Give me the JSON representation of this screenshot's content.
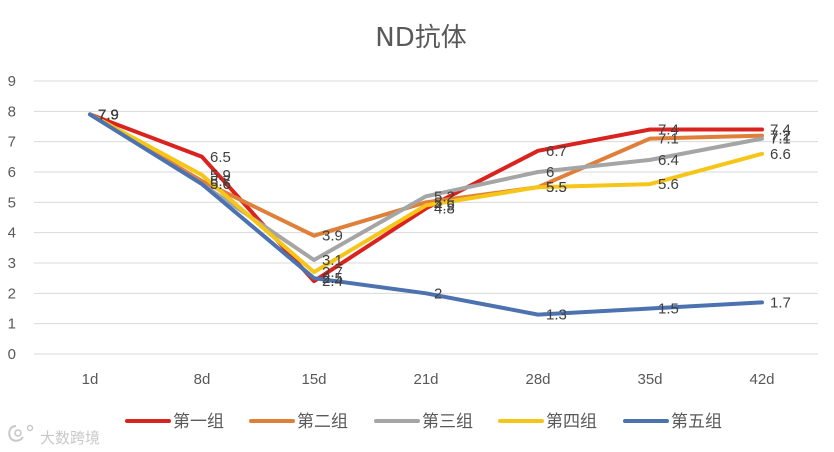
{
  "chart_data": {
    "type": "line",
    "title": "ND抗体",
    "categories": [
      "1d",
      "8d",
      "15d",
      "21d",
      "28d",
      "35d",
      "42d"
    ],
    "ylim": [
      0,
      9
    ],
    "yticks": [
      "0",
      "1",
      "2",
      "3",
      "4",
      "5",
      "6",
      "7",
      "8",
      "9"
    ],
    "grid": true,
    "legend": "bottom",
    "series": [
      {
        "name": "第一组",
        "color": "#d9231f",
        "values": [
          7.9,
          6.5,
          2.4,
          4.8,
          6.7,
          7.4,
          7.4
        ]
      },
      {
        "name": "第二组",
        "color": "#e07f3a",
        "values": [
          7.9,
          5.7,
          3.9,
          5.0,
          5.5,
          7.1,
          7.2
        ]
      },
      {
        "name": "第三组",
        "color": "#a5a5a5",
        "values": [
          7.9,
          5.6,
          3.1,
          5.2,
          6.0,
          6.4,
          7.1
        ]
      },
      {
        "name": "第四组",
        "color": "#f5c518",
        "values": [
          7.9,
          5.9,
          2.7,
          4.9,
          5.5,
          5.6,
          6.6
        ]
      },
      {
        "name": "第五组",
        "color": "#4c72b0",
        "values": [
          7.9,
          5.6,
          2.5,
          2.0,
          1.3,
          1.5,
          1.7
        ]
      }
    ]
  },
  "watermark": {
    "text": "大数跨境",
    "logo": "logo-mark"
  }
}
